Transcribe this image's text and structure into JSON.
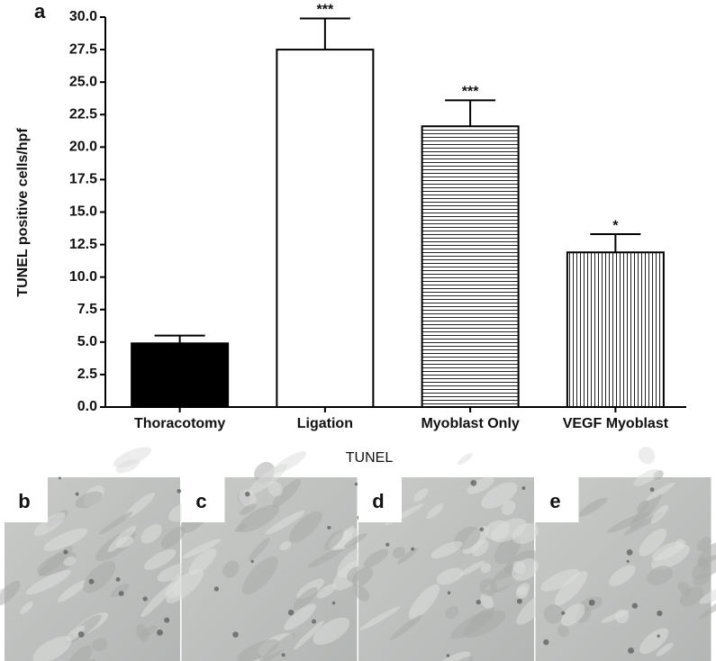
{
  "chart_data": {
    "type": "bar",
    "panel_label": "a",
    "ylabel": "TUNEL positive cells/hpf",
    "categories": [
      "Thoracotomy",
      "Ligation",
      "Myoblast Only",
      "VEGF Myoblast"
    ],
    "values": [
      4.9,
      27.5,
      21.6,
      11.9
    ],
    "errors": [
      0.6,
      2.4,
      2.0,
      1.4
    ],
    "significance": [
      null,
      "***",
      "***",
      "*"
    ],
    "fills": [
      "solid",
      "none",
      "horizontal-lines",
      "vertical-lines"
    ],
    "color": "#000000",
    "ylim": [
      0,
      30
    ],
    "yticks": [
      {
        "value": 0,
        "label": "0.0"
      },
      {
        "value": 2.5,
        "label": "2.5"
      },
      {
        "value": 5,
        "label": "5.0"
      },
      {
        "value": 7.5,
        "label": "7.5"
      },
      {
        "value": 10,
        "label": "10.0"
      },
      {
        "value": 12.5,
        "label": "12.5"
      },
      {
        "value": 15,
        "label": "15.0"
      },
      {
        "value": 17.5,
        "label": "17.5"
      },
      {
        "value": 20,
        "label": "20.0"
      },
      {
        "value": 22.5,
        "label": "22.5"
      },
      {
        "value": 25,
        "label": "25.0"
      },
      {
        "value": 27.5,
        "label": "27.5"
      },
      {
        "value": 30,
        "label": "30.0"
      }
    ],
    "grid": false
  },
  "panels": {
    "caption": "TUNEL",
    "labels": [
      "b",
      "c",
      "d",
      "e"
    ]
  }
}
